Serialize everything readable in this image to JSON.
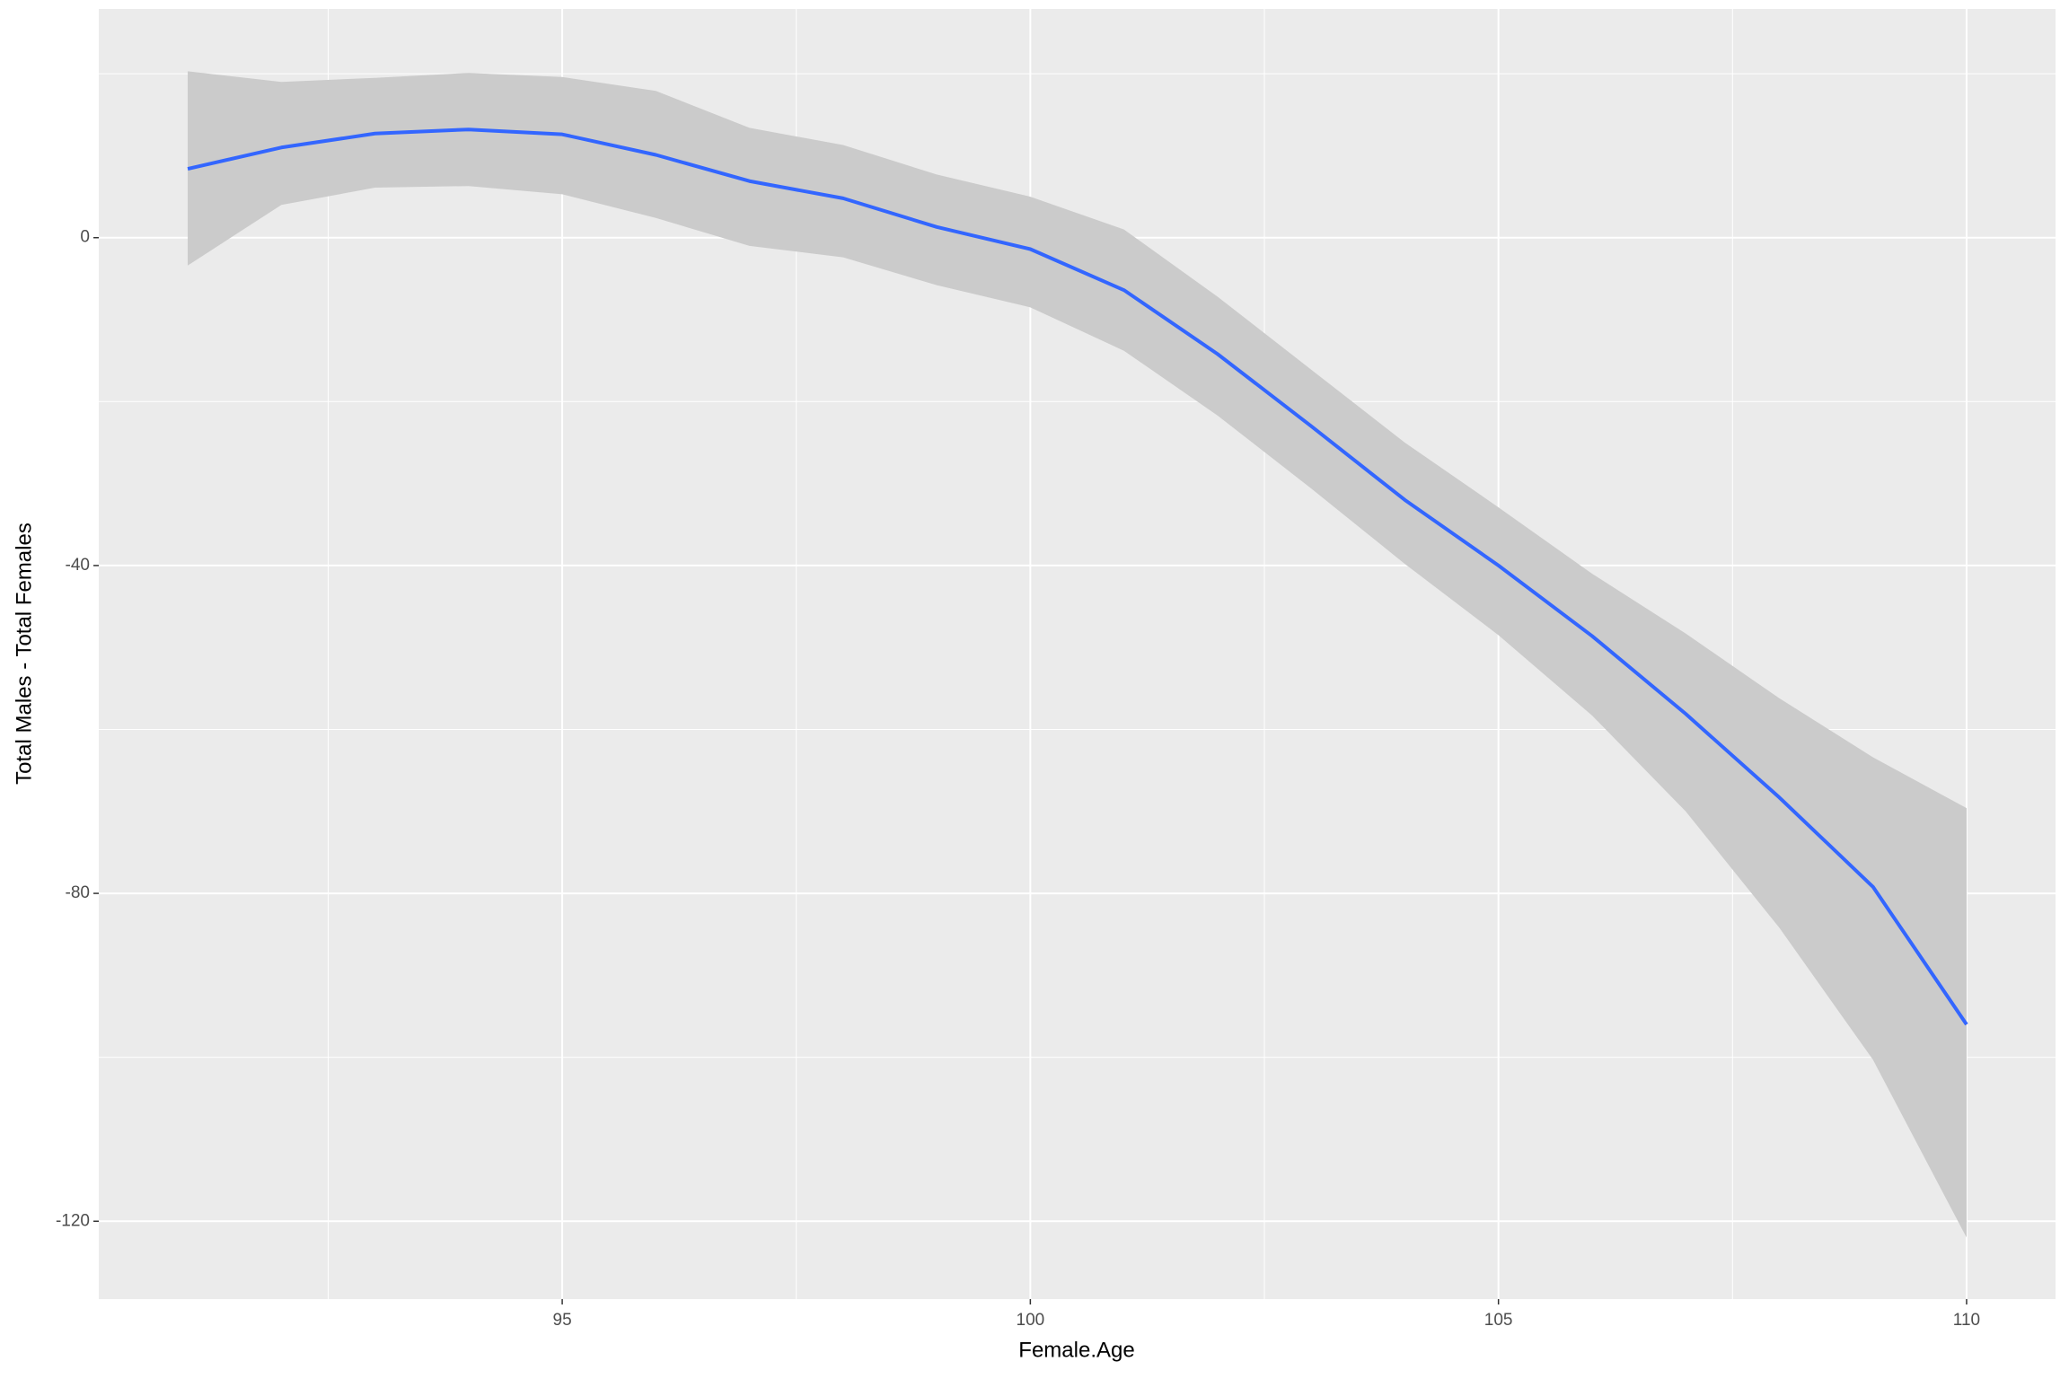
{
  "chart_data": {
    "type": "line",
    "x_label": "Female.Age",
    "y_label": "Total Males - Total Females",
    "x": [
      91,
      92,
      93,
      94,
      95,
      96,
      97,
      98,
      99,
      100,
      101,
      102,
      103,
      104,
      105,
      106,
      107,
      108,
      109,
      110
    ],
    "series": [
      {
        "color": "#3366ff",
        "values": [
          8.4,
          11,
          12.7,
          13.2,
          12.6,
          10.1,
          6.9,
          4.8,
          1.3,
          -1.4,
          -6.4,
          -14.2,
          -23,
          -32,
          -40,
          -48.6,
          -58.1,
          -68.3,
          -79.2,
          -96
        ],
        "lower": [
          -3.4,
          4,
          6.1,
          6.3,
          5.3,
          2.4,
          -1,
          -2.4,
          -5.8,
          -8.5,
          -13.8,
          -21.7,
          -30.6,
          -39.8,
          -48.5,
          -58.3,
          -70,
          -84.2,
          -100.3,
          -122
        ],
        "upper": [
          20.3,
          19,
          19.5,
          20.1,
          19.6,
          17.9,
          13.4,
          11.3,
          7.7,
          5,
          1,
          -7.2,
          -16.1,
          -25,
          -32.9,
          -41,
          -48.3,
          -56.2,
          -63.4,
          -69.6
        ],
        "band_color": "#cbcbcb"
      }
    ],
    "xlim": [
      90.05,
      110.95
    ],
    "ylim": [
      -129.5,
      27.9
    ],
    "xticks": [
      95,
      100,
      105,
      110
    ],
    "yticks": [
      -120,
      -80,
      -40,
      0
    ],
    "x_minor": [
      92.5,
      97.5,
      102.5,
      107.5
    ],
    "y_minor": [
      -100,
      -60,
      -20,
      20
    ],
    "grid": true,
    "panel_color": "#ebebeb"
  }
}
